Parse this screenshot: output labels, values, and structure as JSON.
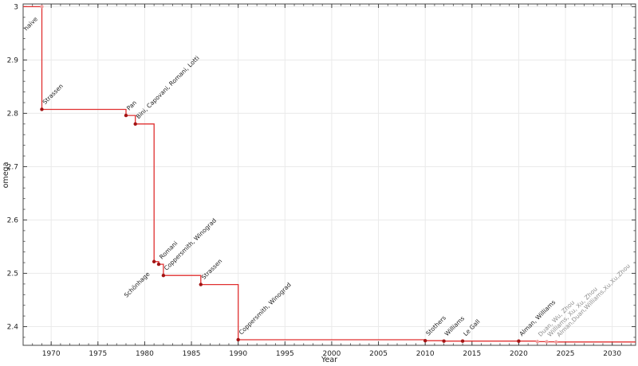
{
  "chart_data": {
    "type": "line",
    "subtype": "step-post",
    "title": "",
    "xlabel": "Year",
    "ylabel": "omega",
    "xlim": [
      1967,
      2032.5
    ],
    "ylim": [
      2.365,
      3.005
    ],
    "grid": true,
    "legend": "none",
    "x_major_ticks": [
      1970,
      1975,
      1980,
      1985,
      1990,
      1995,
      2000,
      2005,
      2010,
      2015,
      2020,
      2025,
      2030
    ],
    "x_tick_labels": [
      "1970",
      "1975",
      "1980",
      "1985",
      "1990",
      "1995",
      "2000",
      "2005",
      "2010",
      "2015",
      "2020",
      "2025",
      "2030"
    ],
    "x_minor_step": 1,
    "y_major_ticks": [
      2.4,
      2.5,
      2.6,
      2.7,
      2.8,
      2.9,
      3.0
    ],
    "y_tick_labels": [
      "2.4",
      "2.5",
      "2.6",
      "2.7",
      "2.8",
      "2.9",
      "3"
    ],
    "y_minor_step": 0.02,
    "colors": {
      "line": "#e03030",
      "marker": "#a31414",
      "marker_light": "#f09e9e",
      "label": "#1a1a1a",
      "label_recent": "#8f8f8f",
      "grid": "#eaeaea",
      "axis": "#444444",
      "tick_label": "#222222"
    },
    "points": [
      {
        "label": "naive",
        "year": 1969,
        "omega": 3.0,
        "label_side": "down",
        "recent": false,
        "marker": "light"
      },
      {
        "label": "Strassen",
        "year": 1969,
        "omega": 2.8074,
        "label_side": "up",
        "recent": false
      },
      {
        "label": "Pan",
        "year": 1978,
        "omega": 2.796,
        "label_side": "up",
        "recent": false
      },
      {
        "label": "Bini, Capovani, Romani, Lotti",
        "year": 1979,
        "omega": 2.78,
        "label_side": "up",
        "recent": false
      },
      {
        "label": "Schönhage",
        "year": 1981,
        "omega": 2.522,
        "label_side": "down",
        "recent": false
      },
      {
        "label": "Romani",
        "year": 1981.5,
        "omega": 2.517,
        "label_side": "up",
        "recent": false
      },
      {
        "label": "Coppersmith, Winograd",
        "year": 1982,
        "omega": 2.496,
        "label_side": "up",
        "recent": false
      },
      {
        "label": "Strassen",
        "year": 1986,
        "omega": 2.479,
        "label_side": "up",
        "recent": false
      },
      {
        "label": "Coppersmith, Winograd",
        "year": 1990,
        "omega": 2.3755,
        "label_side": "up",
        "recent": false
      },
      {
        "label": "Stothers",
        "year": 2010,
        "omega": 2.3737,
        "label_side": "up",
        "recent": false
      },
      {
        "label": "Williams",
        "year": 2012,
        "omega": 2.3729,
        "label_side": "up",
        "recent": false
      },
      {
        "label": "Le Gall",
        "year": 2014,
        "omega": 2.3729,
        "label_side": "up",
        "recent": false
      },
      {
        "label": "Alman, Williams",
        "year": 2020,
        "omega": 2.3729,
        "label_side": "up",
        "recent": false
      },
      {
        "label": "Duan, Wu, Zhou",
        "year": 2022,
        "omega": 2.3719,
        "label_side": "up",
        "recent": true
      },
      {
        "label": "Williams, Xu, Xu, Zhou",
        "year": 2023,
        "omega": 2.3716,
        "label_side": "up",
        "recent": true
      },
      {
        "label": "Alman,Duan,Williams,Xu,Xu,Zhou",
        "year": 2024,
        "omega": 2.3713,
        "label_side": "up",
        "recent": true
      }
    ]
  }
}
